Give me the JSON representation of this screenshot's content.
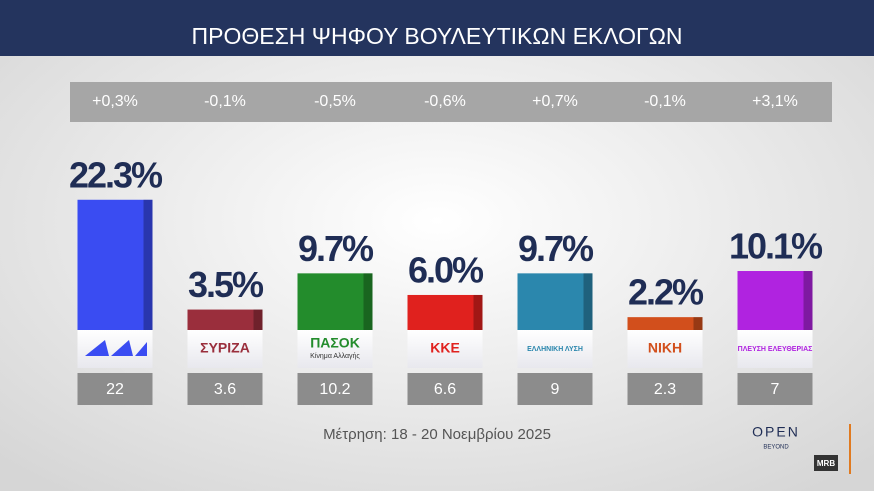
{
  "chart_data": {
    "type": "bar",
    "title": "ΠΡΟΘΕΣΗ ΨΗΦΟΥ ΒΟΥΛΕΥΤΙΚΩΝ ΕΚΛΟΓΩΝ",
    "categories": [
      null,
      "ΣΥΡΙΖΑ",
      "ΠΑΣΟΚ",
      "ΚΚΕ",
      "ΕΛΛΗΝΙΚΗ ΛΥΣΗ",
      "ΝΙΚΗ",
      "ΠΛΕΥΣΗ ΕΛΕΥΘΕΡΙΑΣ"
    ],
    "category_subtitles": [
      null,
      null,
      "Κίνημα Αλλαγής",
      null,
      null,
      null,
      null
    ],
    "values": [
      22.3,
      3.5,
      9.7,
      6.0,
      9.7,
      2.2,
      10.1
    ],
    "value_labels": [
      "22.3%",
      "3.5%",
      "9.7%",
      "6.0%",
      "9.7%",
      "2.2%",
      "10.1%"
    ],
    "colors": [
      "#3a4cf2",
      "#9a2e3c",
      "#238c2c",
      "#e0211e",
      "#2b87ad",
      "#d24f1c",
      "#b023e0"
    ],
    "changes": [
      "+0,3%",
      "-0,1%",
      "-0,5%",
      "-0,6%",
      "+0,7%",
      "-0,1%",
      "+3,1%"
    ],
    "previous": [
      22,
      3.6,
      10.2,
      6.6,
      9,
      2.3,
      7
    ],
    "ylim": [
      0,
      25
    ],
    "footnote": "Μέτρηση: 18 - 20 Νοεμβρίου 2025",
    "brand": "OPEN",
    "brand_sub": "BEYOND",
    "pollster": "MRB"
  }
}
